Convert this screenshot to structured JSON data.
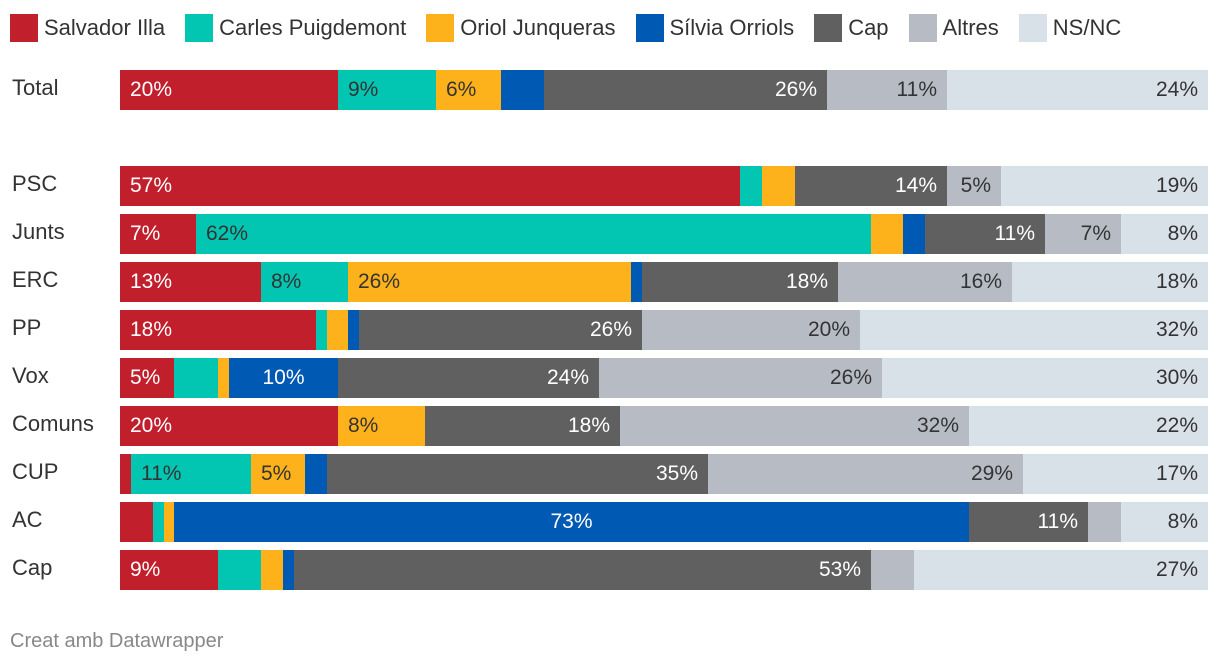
{
  "chart_data": {
    "type": "bar",
    "orientation": "horizontal",
    "stacked": true,
    "normalized": true,
    "legend_position": "top",
    "categories": [
      "Total",
      "PSC",
      "Junts",
      "ERC",
      "PP",
      "Vox",
      "Comuns",
      "CUP",
      "AC",
      "Cap"
    ],
    "series": [
      {
        "name": "Salvador Illa",
        "color": "#c11f2c",
        "label_color": "#ffffff",
        "values": [
          20,
          57,
          7,
          13,
          18,
          5,
          20,
          1,
          3,
          9
        ],
        "labels": [
          "20%",
          "57%",
          "7%",
          "13%",
          "18%",
          "5%",
          "20%",
          "",
          "",
          "9%"
        ]
      },
      {
        "name": "Carles Puigdemont",
        "color": "#03c6b2",
        "label_color": "#333333",
        "values": [
          9,
          2,
          62,
          8,
          1,
          4,
          0,
          11,
          1,
          4
        ],
        "labels": [
          "9%",
          "",
          "62%",
          "8%",
          "",
          "",
          "",
          "11%",
          "",
          ""
        ]
      },
      {
        "name": "Oriol Junqueras",
        "color": "#fdb11b",
        "label_color": "#333333",
        "values": [
          6,
          3,
          3,
          26,
          2,
          1,
          8,
          5,
          1,
          2
        ],
        "labels": [
          "6%",
          "",
          "",
          "26%",
          "",
          "",
          "8%",
          "5%",
          "",
          ""
        ]
      },
      {
        "name": "Sílvia Orriols",
        "color": "#0059b3",
        "label_color": "#ffffff",
        "values": [
          4,
          0,
          2,
          1,
          1,
          10,
          0,
          2,
          73,
          1
        ],
        "labels": [
          "",
          "",
          "",
          "",
          "",
          "10%",
          "",
          "",
          "73%",
          ""
        ]
      },
      {
        "name": "Cap",
        "color": "#606060",
        "label_color": "#ffffff",
        "values": [
          26,
          14,
          11,
          18,
          26,
          24,
          18,
          35,
          11,
          53
        ],
        "labels": [
          "26%",
          "14%",
          "11%",
          "18%",
          "26%",
          "24%",
          "18%",
          "35%",
          "11%",
          "53%"
        ]
      },
      {
        "name": "Altres",
        "color": "#b7bcc4",
        "label_color": "#333333",
        "values": [
          11,
          5,
          7,
          16,
          20,
          26,
          32,
          29,
          3,
          4
        ],
        "labels": [
          "11%",
          "5%",
          "7%",
          "16%",
          "20%",
          "26%",
          "32%",
          "29%",
          "",
          ""
        ]
      },
      {
        "name": "NS/NC",
        "color": "#d8e0e8",
        "label_color": "#333333",
        "values": [
          24,
          19,
          8,
          18,
          32,
          30,
          22,
          17,
          8,
          27
        ],
        "labels": [
          "24%",
          "19%",
          "8%",
          "18%",
          "32%",
          "30%",
          "22%",
          "17%",
          "8%",
          "27%"
        ]
      }
    ]
  },
  "footer": "Creat amb Datawrapper"
}
